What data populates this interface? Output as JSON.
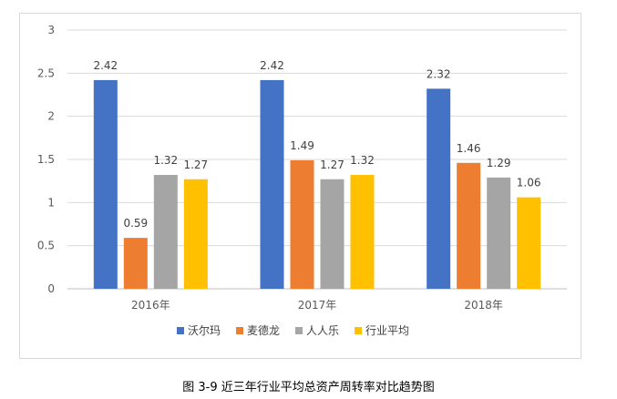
{
  "chart_data": {
    "type": "bar",
    "categories": [
      "2016年",
      "2017年",
      "2018年"
    ],
    "series": [
      {
        "name": "沃尔玛",
        "color": "#4472C4",
        "values": [
          2.42,
          2.42,
          2.32
        ]
      },
      {
        "name": "麦德龙",
        "color": "#ED7D31",
        "values": [
          0.59,
          1.49,
          1.46
        ]
      },
      {
        "name": "人人乐",
        "color": "#A5A5A5",
        "values": [
          1.32,
          1.27,
          1.29
        ]
      },
      {
        "name": "行业平均",
        "color": "#FFC000",
        "values": [
          1.27,
          1.32,
          1.06
        ]
      }
    ],
    "yticks": [
      "0",
      "0.5",
      "1",
      "1.5",
      "2",
      "2.5",
      "3"
    ],
    "ylim": [
      0,
      3
    ],
    "grid": true,
    "legend_position": "bottom"
  },
  "caption": "图 3-9  近三年行业平均总资产周转率对比趋势图"
}
